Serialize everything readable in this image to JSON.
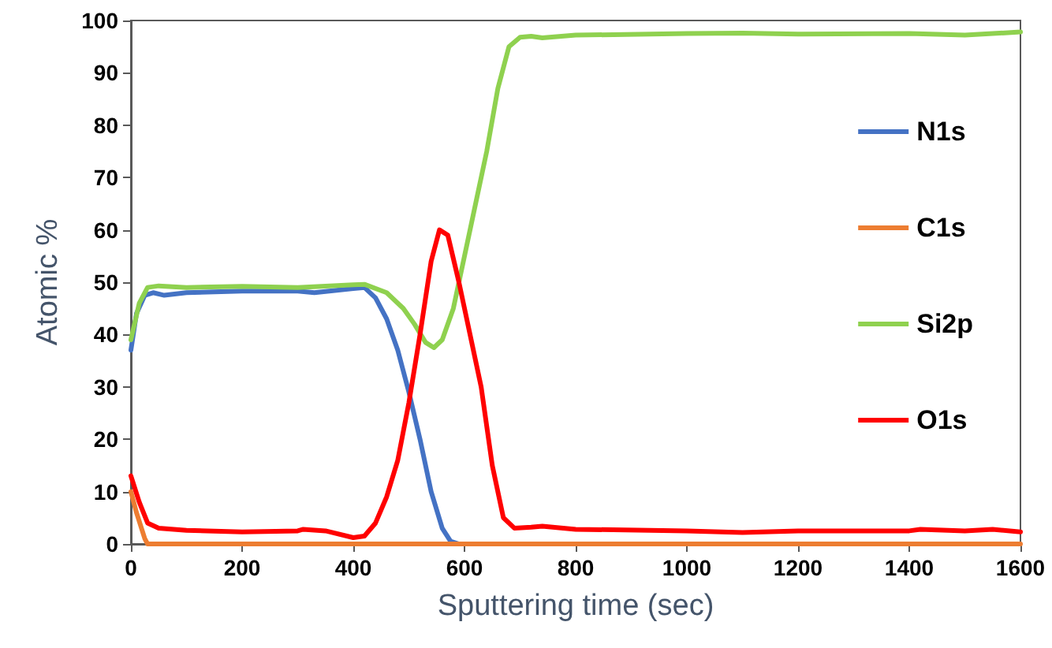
{
  "chart_data": {
    "type": "line",
    "xlabel": "Sputtering time (sec)",
    "ylabel": "Atomic %",
    "xlim": [
      0,
      1600
    ],
    "xticks": [
      0,
      200,
      400,
      600,
      800,
      1000,
      1200,
      1400,
      1600
    ],
    "ylim": [
      0,
      100
    ],
    "yticks": [
      0,
      10,
      20,
      30,
      40,
      50,
      60,
      70,
      80,
      90,
      100
    ],
    "grid": false,
    "legend": "right",
    "marker": "none",
    "line_style": "solid",
    "series": [
      {
        "name": "N1s",
        "color": "#4472c4",
        "x": [
          0,
          10,
          25,
          40,
          60,
          100,
          200,
          300,
          330,
          400,
          420,
          440,
          460,
          480,
          500,
          520,
          540,
          560,
          575,
          590
        ],
        "values": [
          37,
          44,
          47.5,
          48,
          47.5,
          48,
          48.3,
          48.3,
          48,
          48.8,
          49,
          47,
          43,
          37,
          29,
          20,
          10,
          3,
          0.5,
          0
        ]
      },
      {
        "name": "C1s",
        "color": "#ed7d31",
        "x": [
          0,
          10,
          25,
          30,
          50,
          1600
        ],
        "values": [
          10,
          6,
          1,
          0,
          0,
          0
        ]
      },
      {
        "name": "Si2p",
        "color": "#8fd14f",
        "x": [
          0,
          15,
          30,
          50,
          100,
          200,
          300,
          400,
          420,
          460,
          490,
          510,
          530,
          545,
          560,
          580,
          600,
          620,
          640,
          660,
          680,
          700,
          720,
          740,
          800,
          1000,
          1100,
          1200,
          1400,
          1500,
          1550,
          1600
        ],
        "values": [
          39,
          46,
          49,
          49.3,
          49,
          49.2,
          49,
          49.5,
          49.6,
          48,
          45,
          42,
          38.5,
          37.5,
          39,
          45,
          55,
          65,
          75,
          87,
          95,
          96.8,
          97,
          96.7,
          97.2,
          97.5,
          97.6,
          97.4,
          97.5,
          97.2,
          97.5,
          97.8
        ]
      },
      {
        "name": "O1s",
        "color": "#ff0000",
        "x": [
          0,
          15,
          30,
          50,
          100,
          200,
          300,
          310,
          350,
          400,
          420,
          440,
          460,
          480,
          500,
          520,
          540,
          555,
          570,
          590,
          610,
          630,
          650,
          670,
          690,
          720,
          740,
          800,
          1000,
          1100,
          1200,
          1400,
          1420,
          1500,
          1550,
          1600
        ],
        "values": [
          13,
          8,
          4,
          3,
          2.6,
          2.3,
          2.5,
          2.8,
          2.5,
          1.2,
          1.5,
          4,
          9,
          16,
          27,
          40,
          54,
          60,
          59,
          50,
          40,
          30,
          15,
          5,
          3,
          3.2,
          3.4,
          2.8,
          2.5,
          2.2,
          2.5,
          2.5,
          2.8,
          2.5,
          2.8,
          2.3
        ]
      }
    ]
  }
}
